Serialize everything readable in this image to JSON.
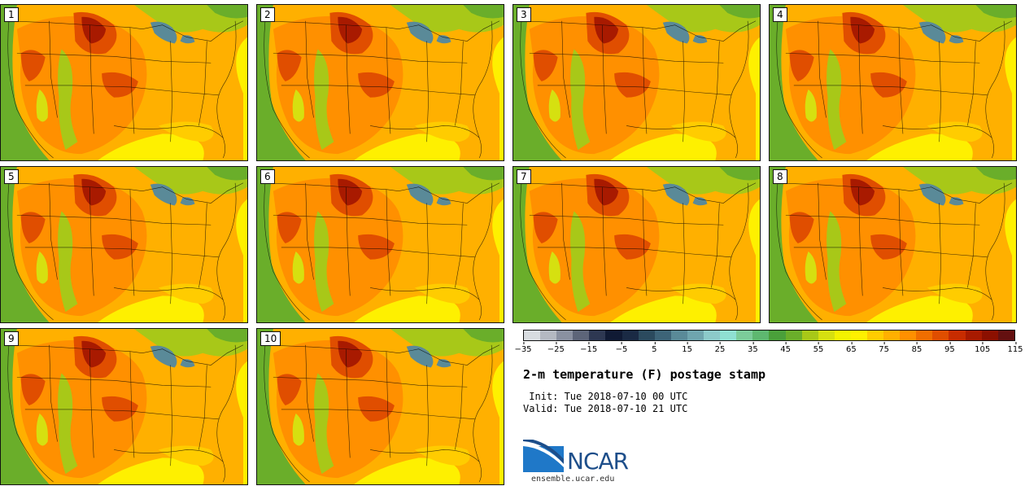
{
  "panels": [
    {
      "label": "1"
    },
    {
      "label": "2"
    },
    {
      "label": "3"
    },
    {
      "label": "4"
    },
    {
      "label": "5"
    },
    {
      "label": "6"
    },
    {
      "label": "7"
    },
    {
      "label": "8"
    },
    {
      "label": "9"
    },
    {
      "label": "10"
    }
  ],
  "colorbar": {
    "colors": [
      "#d8dce0",
      "#b4b9c2",
      "#8a91a1",
      "#5d6579",
      "#2e3852",
      "#101a34",
      "#1a2a44",
      "#2b4a5e",
      "#3d6478",
      "#5a8a98",
      "#6fa5ae",
      "#8ccaca",
      "#8fe0d2",
      "#7ccc9a",
      "#5eb870",
      "#4aa03a",
      "#6aae2a",
      "#a8c818",
      "#d6e010",
      "#f4f200",
      "#fef000",
      "#ffcc00",
      "#ffb000",
      "#ff9000",
      "#f06e00",
      "#e04e00",
      "#c82c00",
      "#a81a00",
      "#8c1000",
      "#641010"
    ],
    "ticks": [
      "−35",
      "−25",
      "−15",
      "−5",
      "5",
      "15",
      "25",
      "35",
      "45",
      "55",
      "65",
      "75",
      "85",
      "95",
      "105",
      "115"
    ]
  },
  "title": "2-m temperature (F) postage stamp",
  "init": " Init: Tue 2018-07-10 00 UTC",
  "valid": "Valid: Tue 2018-07-10 21 UTC",
  "logo_text": "NCAR",
  "url": "ensemble.ucar.edu"
}
